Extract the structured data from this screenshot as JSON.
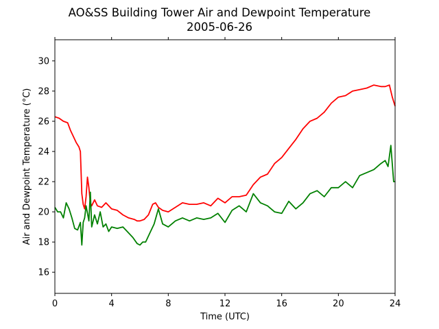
{
  "chart_data": {
    "type": "line",
    "title": "AO&SS Building Tower Air and Dewpoint Temperature",
    "subtitle": "2005-06-26",
    "xlabel": "Time (UTC)",
    "ylabel": "Air and Dewpoint Temperature (°C)",
    "xlim": [
      0,
      24
    ],
    "ylim": [
      14.6,
      31.4
    ],
    "xticks": [
      0,
      4,
      8,
      12,
      16,
      20,
      24
    ],
    "yticks": [
      16,
      18,
      20,
      22,
      24,
      26,
      28,
      30
    ],
    "grid": false,
    "series": [
      {
        "color": "#ff0000",
        "x": [
          0,
          0.3,
          0.6,
          0.9,
          1.1,
          1.3,
          1.5,
          1.7,
          1.8,
          1.9,
          2.0,
          2.1,
          2.2,
          2.3,
          2.4,
          2.5,
          2.6,
          2.8,
          3.0,
          3.3,
          3.6,
          4.0,
          4.4,
          4.8,
          5.2,
          5.6,
          5.8,
          6.0,
          6.3,
          6.6,
          6.9,
          7.1,
          7.3,
          7.6,
          8.0,
          8.5,
          9.0,
          9.5,
          10.0,
          10.5,
          11.0,
          11.5,
          12.0,
          12.5,
          13.0,
          13.5,
          14.0,
          14.5,
          15.0,
          15.5,
          16.0,
          16.5,
          17.0,
          17.5,
          18.0,
          18.5,
          19.0,
          19.5,
          20.0,
          20.5,
          21.0,
          21.5,
          22.0,
          22.5,
          23.0,
          23.3,
          23.6,
          23.8,
          24.0
        ],
        "values": [
          26.3,
          26.2,
          26.0,
          25.9,
          25.4,
          25.0,
          24.6,
          24.3,
          24.0,
          21.2,
          20.5,
          20.2,
          21.0,
          22.3,
          21.6,
          20.6,
          20.4,
          20.8,
          20.4,
          20.3,
          20.6,
          20.2,
          20.1,
          19.8,
          19.6,
          19.5,
          19.4,
          19.4,
          19.5,
          19.8,
          20.5,
          20.6,
          20.3,
          20.1,
          20.0,
          20.3,
          20.6,
          20.5,
          20.5,
          20.6,
          20.4,
          20.9,
          20.6,
          21.0,
          21.0,
          21.1,
          21.8,
          22.3,
          22.5,
          23.2,
          23.6,
          24.2,
          24.8,
          25.5,
          26.0,
          26.2,
          26.6,
          27.2,
          27.6,
          27.7,
          28.0,
          28.1,
          28.2,
          28.4,
          28.3,
          28.3,
          28.4,
          27.6,
          27.0
        ]
      },
      {
        "color": "#008000",
        "x": [
          0,
          0.2,
          0.4,
          0.6,
          0.8,
          1.0,
          1.2,
          1.4,
          1.6,
          1.8,
          1.9,
          2.0,
          2.1,
          2.2,
          2.4,
          2.5,
          2.6,
          2.8,
          3.0,
          3.2,
          3.4,
          3.6,
          3.8,
          4.0,
          4.4,
          4.8,
          5.2,
          5.5,
          5.8,
          6.0,
          6.2,
          6.4,
          6.7,
          7.0,
          7.3,
          7.6,
          8.0,
          8.5,
          9.0,
          9.5,
          10.0,
          10.5,
          11.0,
          11.5,
          12.0,
          12.5,
          13.0,
          13.5,
          14.0,
          14.5,
          15.0,
          15.5,
          16.0,
          16.5,
          17.0,
          17.5,
          18.0,
          18.5,
          19.0,
          19.5,
          20.0,
          20.5,
          21.0,
          21.5,
          22.0,
          22.5,
          23.0,
          23.3,
          23.5,
          23.7,
          23.9,
          24.0
        ],
        "values": [
          20.3,
          20.0,
          20.0,
          19.6,
          20.6,
          20.2,
          19.6,
          18.9,
          18.8,
          19.3,
          17.8,
          19.3,
          19.6,
          20.4,
          19.4,
          21.3,
          19.0,
          19.8,
          19.2,
          20.0,
          19.0,
          19.2,
          18.7,
          19.0,
          18.9,
          19.0,
          18.6,
          18.3,
          17.9,
          17.8,
          18.0,
          18.0,
          18.6,
          19.2,
          20.2,
          19.2,
          19.0,
          19.4,
          19.6,
          19.4,
          19.6,
          19.5,
          19.6,
          19.9,
          19.3,
          20.1,
          20.4,
          20.0,
          21.2,
          20.6,
          20.4,
          20.0,
          19.9,
          20.7,
          20.2,
          20.6,
          21.2,
          21.4,
          21.0,
          21.6,
          21.6,
          22.0,
          21.6,
          22.4,
          22.6,
          22.8,
          23.2,
          23.4,
          23.0,
          24.4,
          22.0,
          22.0
        ]
      }
    ]
  }
}
